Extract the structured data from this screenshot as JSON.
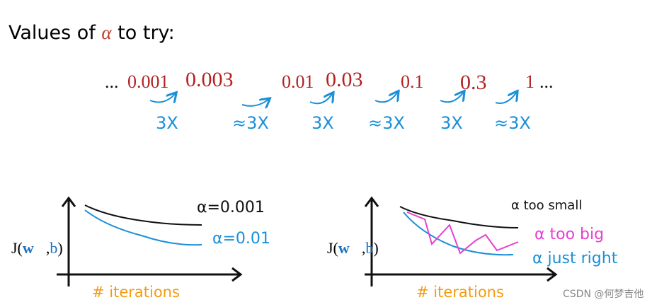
{
  "title": {
    "prefix": "Values of ",
    "symbol": "α",
    "suffix": " to try:"
  },
  "sequence": {
    "leading": "...",
    "values": [
      "0.001",
      "0.003",
      "0.01",
      "0.03",
      "0.1",
      "0.3",
      "1"
    ],
    "trailing": "..."
  },
  "multipliers": [
    "3X",
    "≈3X",
    "3X",
    "≈3X",
    "3X",
    "≈3X"
  ],
  "left_plot": {
    "ylabel": {
      "start": "J(",
      "w": "w⃗",
      "comma": ",",
      "b": "b",
      "end": ")"
    },
    "xlabel": "# iterations",
    "curve_labels": [
      "α=0.001",
      "α=0.01"
    ]
  },
  "right_plot": {
    "ylabel": {
      "start": "J(",
      "w": "w⃗",
      "comma": ",",
      "b": "b",
      "end": ")"
    },
    "xlabel": "# iterations",
    "curve_labels": [
      "α too small",
      "α too big",
      "α just right"
    ]
  },
  "watermark": "CSDN @何梦吉他"
}
